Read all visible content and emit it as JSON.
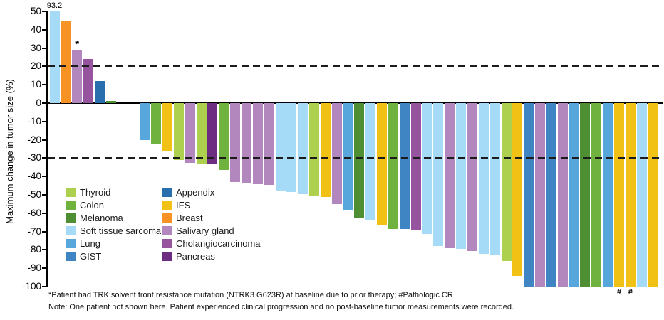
{
  "chart_data": {
    "type": "bar",
    "title": "",
    "xlabel": "",
    "ylabel": "Maximum change in tumor size (%)",
    "ylim": [
      -100,
      50
    ],
    "yticks": [
      50,
      40,
      30,
      20,
      10,
      0,
      -10,
      -20,
      -30,
      -40,
      -50,
      -60,
      -70,
      -80,
      -90,
      -100
    ],
    "reference_lines": [
      20,
      -30
    ],
    "grid": false,
    "palette": {
      "Thyroid": "#aed04f",
      "Colon": "#6fb33e",
      "Melanoma": "#4f8f34",
      "Soft tissue sarcoma": "#a6dbf7",
      "Lung": "#57a7dc",
      "GIST": "#3f85c4",
      "Appendix": "#2a6fad",
      "IFS": "#f2c115",
      "Breast": "#f79224",
      "Salivary gland": "#b287bd",
      "Cholangiocarcinoma": "#96549e",
      "Pancreas": "#6d2e82"
    },
    "bars": [
      {
        "category": "Soft tissue sarcoma",
        "value": 93.2,
        "display": 50,
        "label": "93.2"
      },
      {
        "category": "Breast",
        "value": 44.5
      },
      {
        "category": "Salivary gland",
        "value": 28.9,
        "marker": "*"
      },
      {
        "category": "Cholangiocarcinoma",
        "value": 24
      },
      {
        "category": "Appendix",
        "value": 12
      },
      {
        "category": "Melanoma",
        "value": 1.3
      },
      {
        "category": null,
        "value": 0
      },
      {
        "category": null,
        "value": 0
      },
      {
        "category": "Lung",
        "value": -20
      },
      {
        "category": "Colon",
        "value": -22.5
      },
      {
        "category": "IFS",
        "value": -26
      },
      {
        "category": "Thyroid",
        "value": -31
      },
      {
        "category": "Salivary gland",
        "value": -32.5
      },
      {
        "category": "Thyroid",
        "value": -33
      },
      {
        "category": "Pancreas",
        "value": -33
      },
      {
        "category": "Colon",
        "value": -36.5
      },
      {
        "category": "Salivary gland",
        "value": -43
      },
      {
        "category": "Salivary gland",
        "value": -43.5
      },
      {
        "category": "Salivary gland",
        "value": -44
      },
      {
        "category": "Salivary gland",
        "value": -44.5
      },
      {
        "category": "Soft tissue sarcoma",
        "value": -47.5
      },
      {
        "category": "Soft tissue sarcoma",
        "value": -48.5
      },
      {
        "category": "Soft tissue sarcoma",
        "value": -49.5
      },
      {
        "category": "Thyroid",
        "value": -50.5
      },
      {
        "category": "IFS",
        "value": -51
      },
      {
        "category": "Salivary gland",
        "value": -55
      },
      {
        "category": "Lung",
        "value": -58
      },
      {
        "category": "Melanoma",
        "value": -62.5
      },
      {
        "category": "Soft tissue sarcoma",
        "value": -64
      },
      {
        "category": "IFS",
        "value": -66.5
      },
      {
        "category": "Colon",
        "value": -68.5
      },
      {
        "category": "GIST",
        "value": -68.5
      },
      {
        "category": "Cholangiocarcinoma",
        "value": -69.5
      },
      {
        "category": "Soft tissue sarcoma",
        "value": -71.5
      },
      {
        "category": "Soft tissue sarcoma",
        "value": -78
      },
      {
        "category": "Salivary gland",
        "value": -79
      },
      {
        "category": "Soft tissue sarcoma",
        "value": -79.5
      },
      {
        "category": "Salivary gland",
        "value": -80.5
      },
      {
        "category": "Soft tissue sarcoma",
        "value": -82
      },
      {
        "category": "Soft tissue sarcoma",
        "value": -83
      },
      {
        "category": "Thyroid",
        "value": -86
      },
      {
        "category": "IFS",
        "value": -94
      },
      {
        "category": "GIST",
        "value": -100
      },
      {
        "category": "Salivary gland",
        "value": -100
      },
      {
        "category": "GIST",
        "value": -100
      },
      {
        "category": "Salivary gland",
        "value": -100
      },
      {
        "category": "Lung",
        "value": -100
      },
      {
        "category": "Melanoma",
        "value": -100
      },
      {
        "category": "Colon",
        "value": -100
      },
      {
        "category": "Lung",
        "value": -100
      },
      {
        "category": "IFS",
        "value": -100,
        "marker": "#"
      },
      {
        "category": "IFS",
        "value": -100,
        "marker": "#"
      },
      {
        "category": "Soft tissue sarcoma",
        "value": -100
      },
      {
        "category": "IFS",
        "value": -100
      }
    ]
  },
  "legend": {
    "columns": [
      [
        "Thyroid",
        "Colon",
        "Melanoma",
        "Soft tissue sarcoma",
        "Lung",
        "GIST"
      ],
      [
        "Appendix",
        "IFS",
        "Breast",
        "Salivary gland",
        "Cholangiocarcinoma",
        "Pancreas"
      ]
    ]
  },
  "footnotes": {
    "line1": "*Patient had TRK solvent front resistance mutation (NTRK3 G623R) at baseline due to prior therapy; #Pathologic CR",
    "line2": "Note: One patient not shown here. Patient experienced clinical progression and no post-baseline tumor measurements were recorded."
  }
}
